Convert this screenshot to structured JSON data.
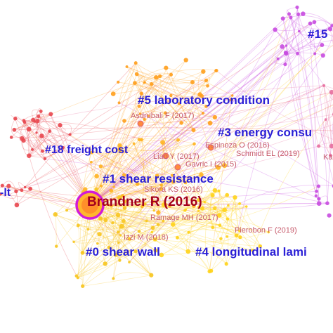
{
  "clusters": [
    {
      "id": "c15",
      "label": "#15",
      "color": "#c84be0"
    },
    {
      "id": "c5",
      "label": "#5 laboratory condition",
      "color": "#ff9f1c"
    },
    {
      "id": "c3",
      "label": "#3 energy consu",
      "color": "#e76fa0"
    },
    {
      "id": "c18",
      "label": "#18 freight cost",
      "color": "#e8474f"
    },
    {
      "id": "c1",
      "label": "#1 shear resistance",
      "color": "#ffb31f"
    },
    {
      "id": "cclt",
      "label": "-lt",
      "color": "#e8474f"
    },
    {
      "id": "c0",
      "label": "#0 shear wall",
      "color": "#f7c51e"
    },
    {
      "id": "c4",
      "label": "#4 longitudinal lami",
      "color": "#ffd31a"
    }
  ],
  "references": [
    {
      "id": "brandner",
      "label": "Brandner R (2016)",
      "major": true
    },
    {
      "id": "asdrubali",
      "label": "Asdrubali F (2017)"
    },
    {
      "id": "espinoza",
      "label": "Espinoza O (2016)"
    },
    {
      "id": "schmidt",
      "label": "Schmidt EL (2019)"
    },
    {
      "id": "ka",
      "label": "Ka"
    },
    {
      "id": "liao",
      "label": "Liao Y (2017)"
    },
    {
      "id": "gavric",
      "label": "Gavric I (2015)"
    },
    {
      "id": "sikora",
      "label": "Sikora KS (2016)"
    },
    {
      "id": "ramage",
      "label": "Ramage MH (2017)"
    },
    {
      "id": "izzi",
      "label": "Izzi M (2018)"
    },
    {
      "id": "pierobon",
      "label": "Pierobon F (2019)"
    }
  ]
}
